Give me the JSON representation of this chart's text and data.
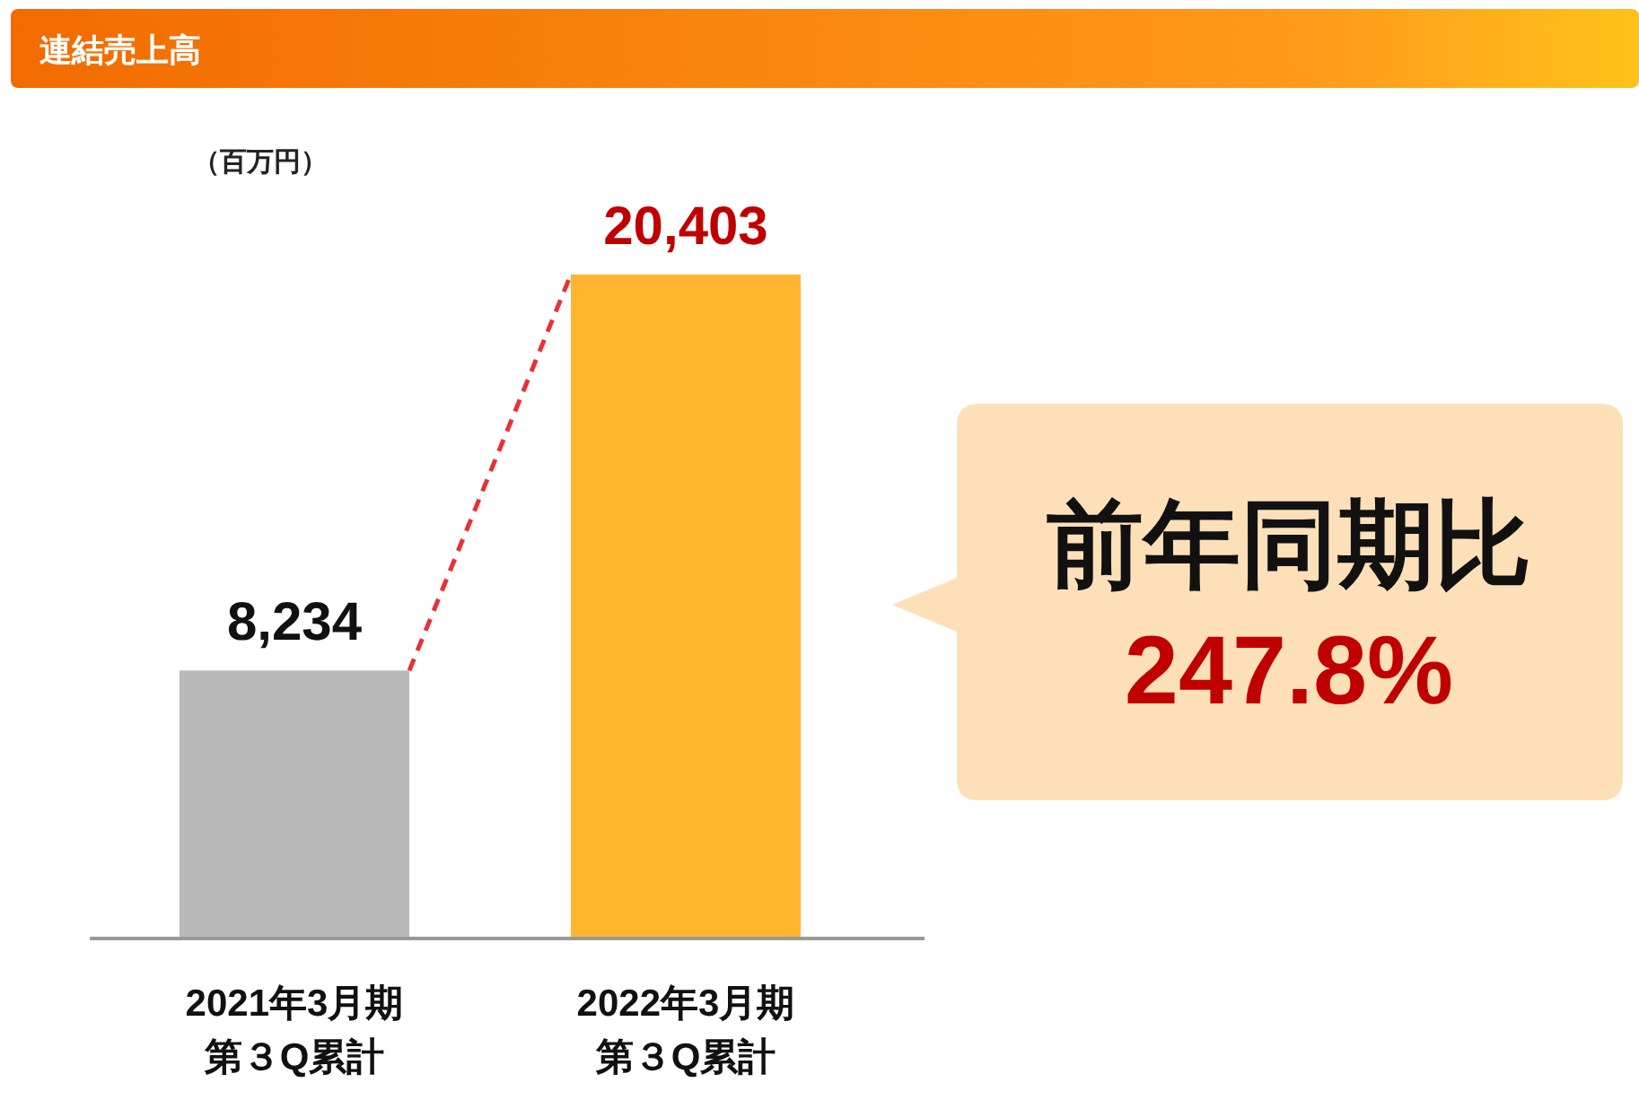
{
  "chart_data": {
    "type": "bar",
    "title": "連結売上高",
    "ylabel": "（百万円）",
    "categories": [
      "2021年3月期第３Q累計",
      "2022年3月期第３Q累計"
    ],
    "values": [
      8234,
      20403
    ],
    "colors": [
      "#b8b8b8",
      "#ffb52e"
    ],
    "value_labels": [
      "8,234",
      "20,403"
    ],
    "annotations": [
      "前年同期比",
      "247.8%"
    ]
  }
}
